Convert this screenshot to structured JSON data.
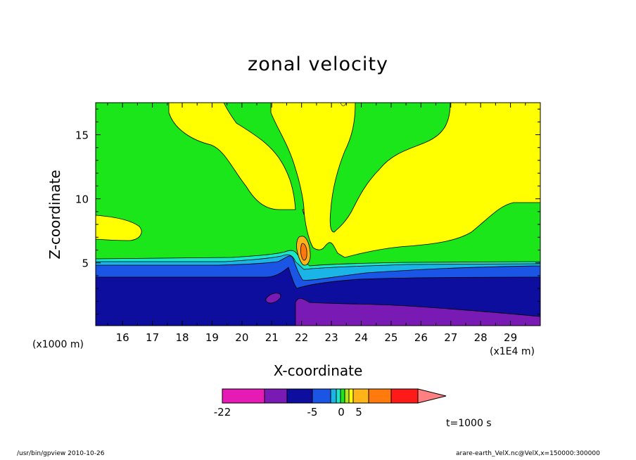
{
  "chart_data": {
    "type": "heatmap",
    "title": "zonal velocity",
    "xlabel": "X-coordinate",
    "ylabel": "Z-coordinate",
    "x_unit_left": "(x1000 m)",
    "x_unit_right": "(x1E4 m)",
    "xlim": [
      15.1,
      30.0
    ],
    "ylim": [
      0.1,
      17.5
    ],
    "x_ticks": [
      16,
      17,
      18,
      19,
      20,
      21,
      22,
      23,
      24,
      25,
      26,
      27,
      28,
      29
    ],
    "y_ticks": [
      5,
      10,
      15
    ],
    "colorbar": {
      "tick_labels": [
        {
          "label": "-22",
          "value": -22
        },
        {
          "label": "-5",
          "value": -5
        },
        {
          "label": "0",
          "value": 0
        },
        {
          "label": "5",
          "value": 5
        }
      ],
      "colors": [
        "#e61ab4",
        "#7a1ab4",
        "#0d0d9e",
        "#1a55e6",
        "#1ab4e6",
        "#1ae6c8",
        "#1ae61a",
        "#b4e61a",
        "#ffff00",
        "#ffb41a",
        "#ff7a0d",
        "#ff1a1a",
        "#ff8080"
      ]
    },
    "time_label": "t=1000 s"
  },
  "footer": {
    "left": "/usr/bin/gpview   2010-10-26",
    "right": "arare-earth_VelX.nc@VelX,x=150000:300000"
  }
}
